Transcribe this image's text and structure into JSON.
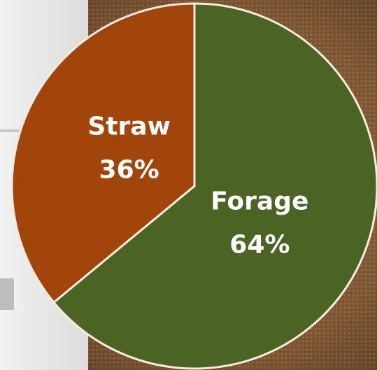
{
  "chart_data": {
    "type": "pie",
    "categories": [
      "Forage",
      "Straw"
    ],
    "values": [
      64,
      36
    ],
    "value_labels": [
      "64%",
      "36%"
    ],
    "colors": [
      "#4b6424",
      "#a2450b"
    ]
  }
}
